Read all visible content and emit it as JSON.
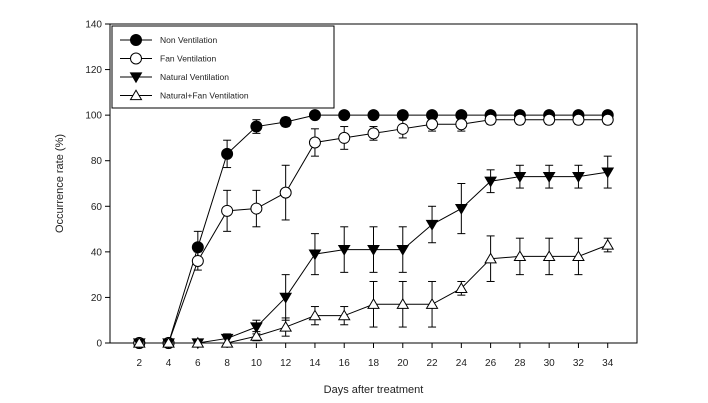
{
  "chart_data": {
    "type": "line",
    "title": "",
    "xlabel": "Days after treatment",
    "ylabel": "Occurrence rate (%)",
    "xlim": [
      0,
      36
    ],
    "ylim": [
      0,
      140
    ],
    "x": [
      2,
      4,
      6,
      8,
      10,
      12,
      14,
      16,
      18,
      20,
      22,
      24,
      26,
      28,
      30,
      32,
      34
    ],
    "x_tick_labels": [
      "2",
      "4",
      "6",
      "8",
      "10",
      "12",
      "14",
      "16",
      "18",
      "20",
      "22",
      "24",
      "26",
      "28",
      "30",
      "32",
      "34"
    ],
    "y_ticks": [
      0,
      20,
      40,
      60,
      80,
      100,
      120,
      140
    ],
    "y_tick_labels": [
      "0",
      "20",
      "40",
      "60",
      "80",
      "100",
      "120",
      "140"
    ],
    "grid": false,
    "legend_position": "top-left",
    "series": [
      {
        "name": "Non Ventilation",
        "marker": "circle-filled",
        "values": [
          0,
          0,
          42,
          83,
          95,
          97,
          100,
          100,
          100,
          100,
          100,
          100,
          100,
          100,
          100,
          100,
          100
        ],
        "errors": [
          0,
          0,
          7,
          6,
          3,
          2,
          0,
          0,
          0,
          0,
          0,
          0,
          0,
          0,
          0,
          0,
          0
        ]
      },
      {
        "name": "Fan Ventilation",
        "marker": "circle-open",
        "values": [
          0,
          0,
          36,
          58,
          59,
          66,
          88,
          90,
          92,
          94,
          96,
          96,
          98,
          98,
          98,
          98,
          98
        ],
        "errors": [
          0,
          0,
          4,
          9,
          8,
          12,
          6,
          5,
          3,
          4,
          3,
          3,
          2,
          2,
          2,
          2,
          2
        ]
      },
      {
        "name": "Natural Ventilation",
        "marker": "triangle-down-filled",
        "values": [
          0,
          0,
          0,
          2,
          7,
          20,
          39,
          41,
          41,
          41,
          52,
          59,
          71,
          73,
          73,
          73,
          75
        ],
        "errors": [
          0,
          0,
          0,
          2,
          3,
          10,
          9,
          10,
          10,
          10,
          8,
          11,
          5,
          5,
          5,
          5,
          7
        ]
      },
      {
        "name": "Natural+Fan Ventilation",
        "marker": "triangle-up-open",
        "values": [
          0,
          0,
          0,
          0,
          3,
          7,
          12,
          12,
          17,
          17,
          17,
          24,
          37,
          38,
          38,
          38,
          43
        ],
        "errors": [
          0,
          0,
          0,
          0,
          2,
          4,
          4,
          4,
          10,
          10,
          10,
          3,
          10,
          8,
          8,
          8,
          3
        ]
      }
    ]
  }
}
